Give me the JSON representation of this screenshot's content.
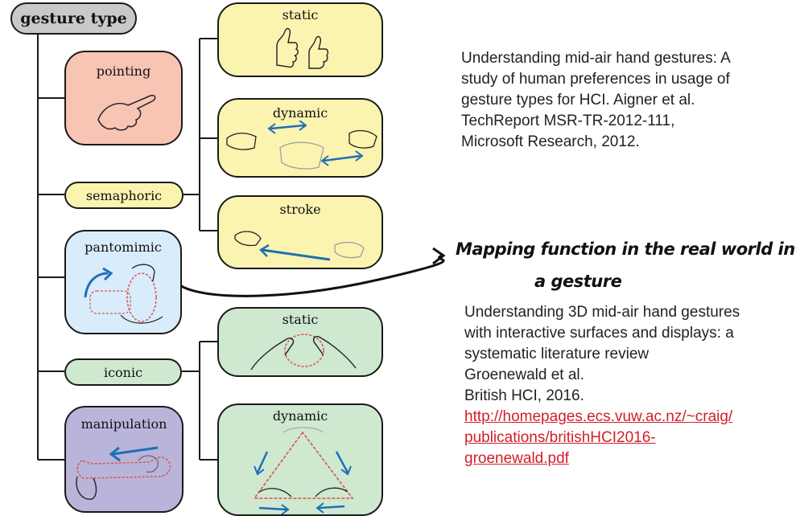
{
  "diagram": {
    "root": "gesture type",
    "nodes": {
      "pointing": "pointing",
      "semaphoric": "semaphoric",
      "pantomimic": "pantomimic",
      "iconic": "iconic",
      "manipulation": "manipulation",
      "semaphoric_static": "static",
      "semaphoric_dynamic": "dynamic",
      "semaphoric_stroke": "stroke",
      "iconic_static": "static",
      "iconic_dynamic": "dynamic"
    },
    "colors": {
      "root": "#c9c9c9",
      "pointing": "#f8c4b4",
      "semaphoric": "#fbf3b0",
      "pantomimic": "#d9ecfb",
      "iconic": "#cfe8d0",
      "manipulation": "#b9b5da",
      "arrow": "#1f6fb5",
      "dashed": "#d9534f"
    }
  },
  "reference1": {
    "lines": [
      "Understanding mid-air hand gestures: A",
      "study of human preferences in usage of",
      "gesture types for HCI. Aigner et al.",
      "TechReport MSR-TR-2012-111,",
      "Microsoft Research, 2012."
    ]
  },
  "annotation": {
    "line1": "Mapping function in the real world into",
    "line2": "a gesture"
  },
  "reference2": {
    "lines": [
      "Understanding 3D mid-air hand gestures",
      "with interactive surfaces and displays: a",
      "systematic literature review",
      "Groenewald et al.",
      "British HCI, 2016."
    ],
    "link_lines": [
      "http://homepages.ecs.vuw.ac.nz/~craig/",
      "publications/britishHCI2016-",
      "groenewald.pdf"
    ],
    "link_color": "#d0202a"
  }
}
